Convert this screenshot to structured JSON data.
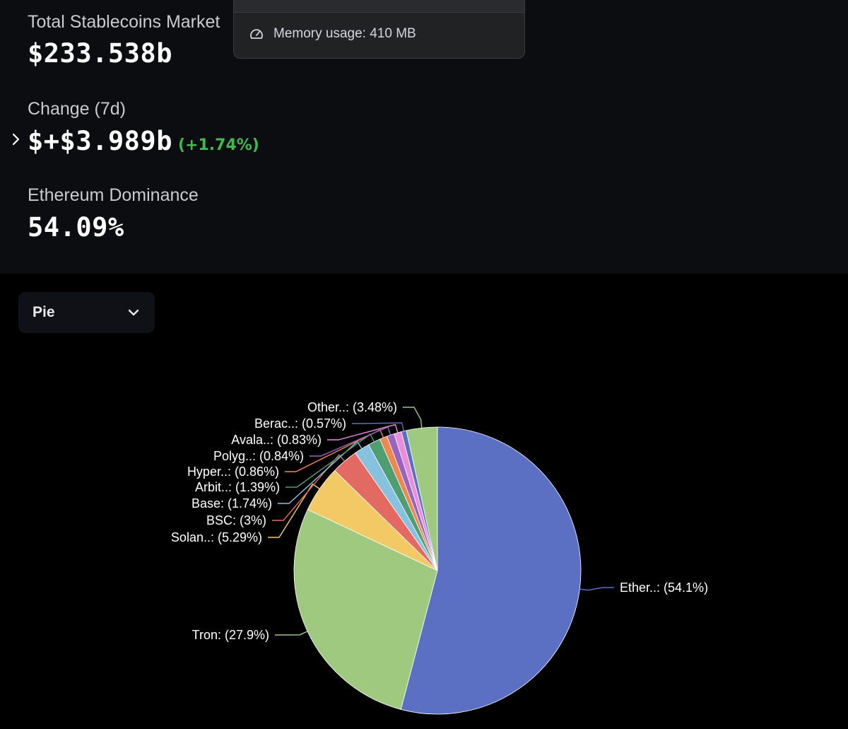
{
  "stats": {
    "total_label": "Total Stablecoins Market",
    "total_value": "$233.538b",
    "change_label": "Change (7d)",
    "change_value": "$+$3.989b",
    "change_percent": "(+1.74%)",
    "dominance_label": "Ethereum Dominance",
    "dominance_value": "54.09%"
  },
  "tooltip": {
    "memory_text": "Memory usage: 410 MB",
    "icon": "gauge-icon"
  },
  "chart_type_select": {
    "value": "Pie",
    "icon": "chevron-down-icon"
  },
  "colors": {
    "positive": "#3fb950",
    "panel": "#0c0d10"
  },
  "chart_data": {
    "type": "pie",
    "slices": [
      {
        "label": "Ether..: (54.1%)",
        "value": 54.1,
        "color": "#5b70c3"
      },
      {
        "label": "Tron: (27.9%)",
        "value": 27.9,
        "color": "#9fc97f"
      },
      {
        "label": "Solan..: (5.29%)",
        "value": 5.29,
        "color": "#f2c965"
      },
      {
        "label": "BSC: (3%)",
        "value": 3.0,
        "color": "#e36a63"
      },
      {
        "label": "Base: (1.74%)",
        "value": 1.74,
        "color": "#86c1e0"
      },
      {
        "label": "Arbit..: (1.39%)",
        "value": 1.39,
        "color": "#4f9e72"
      },
      {
        "label": "Hyper..: (0.86%)",
        "value": 0.86,
        "color": "#f0874e"
      },
      {
        "label": "Polyg..: (0.84%)",
        "value": 0.84,
        "color": "#9a63c0"
      },
      {
        "label": "Avala..: (0.83%)",
        "value": 0.83,
        "color": "#e88fd9"
      },
      {
        "label": "Berac..: (0.57%)",
        "value": 0.57,
        "color": "#5b70c3"
      },
      {
        "label": "Other..: (3.48%)",
        "value": 3.48,
        "color": "#9fc97f"
      }
    ]
  }
}
